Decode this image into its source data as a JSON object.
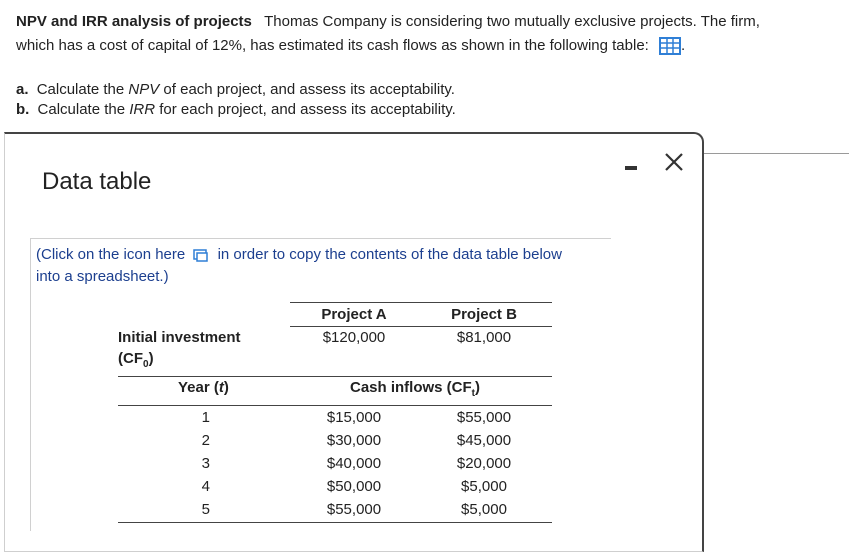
{
  "problem": {
    "title": "NPV and IRR analysis of projects",
    "text_line1": "Thomas Company is considering two mutually exclusive projects. The firm,",
    "text_line2": "which has a cost of capital of 12%, has estimated its cash flows as shown in the following table:",
    "period": ".",
    "icon": "table-icon"
  },
  "parts": [
    {
      "label": "a.",
      "pre": "Calculate the ",
      "term": "NPV",
      "post": " of each project, and assess its acceptability."
    },
    {
      "label": "b.",
      "pre": "Calculate the ",
      "term": "IRR",
      "post": " for each project, and assess its acceptability."
    }
  ],
  "dialog": {
    "title": "Data table",
    "hint_pre": "(Click on the icon here",
    "hint_post": "in order to copy the contents of the data table below",
    "hint_line2": "into a spreadsheet.)",
    "icons": {
      "minimize": "minimize-icon",
      "close": "close-icon",
      "copy": "copy-icon"
    }
  },
  "data_table": {
    "col_a": "Project A",
    "col_b": "Project B",
    "initial_label": "Initial investment",
    "initial_sym": "(CF",
    "initial_sub": "0",
    "initial_close": ")",
    "initial_a": "$120,000",
    "initial_b": "$81,000",
    "year_label": "Year (",
    "year_var": "t",
    "year_close": ")",
    "cash_label": "Cash inflows (CF",
    "cash_sub": "t",
    "cash_close": ")",
    "rows": [
      {
        "year": "1",
        "a": "$15,000",
        "b": "$55,000"
      },
      {
        "year": "2",
        "a": "$30,000",
        "b": "$45,000"
      },
      {
        "year": "3",
        "a": "$40,000",
        "b": "$20,000"
      },
      {
        "year": "4",
        "a": "$50,000",
        "b": "$5,000"
      },
      {
        "year": "5",
        "a": "$55,000",
        "b": "$5,000"
      }
    ]
  }
}
